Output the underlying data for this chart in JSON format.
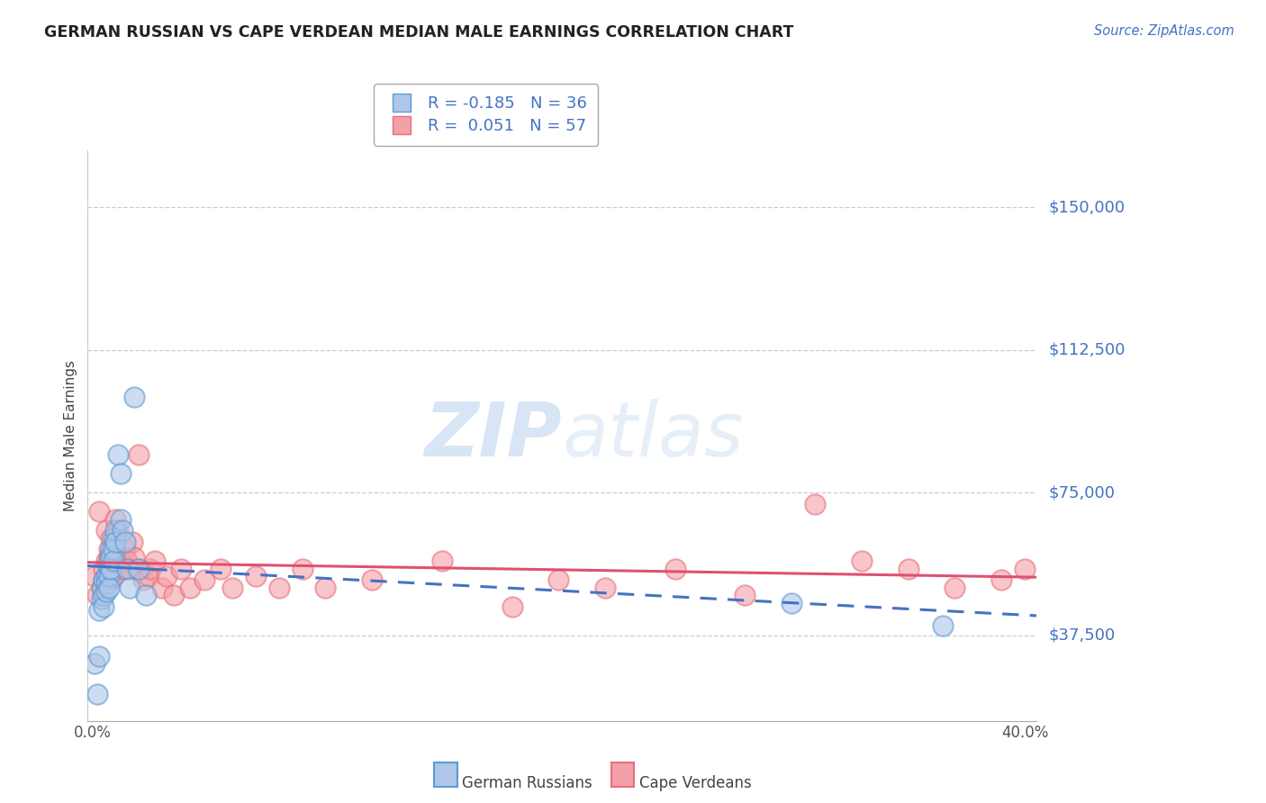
{
  "title": "GERMAN RUSSIAN VS CAPE VERDEAN MEDIAN MALE EARNINGS CORRELATION CHART",
  "source": "Source: ZipAtlas.com",
  "ylabel": "Median Male Earnings",
  "ytick_labels": [
    "$37,500",
    "$75,000",
    "$112,500",
    "$150,000"
  ],
  "ytick_values": [
    37500,
    75000,
    112500,
    150000
  ],
  "ymin": 15000,
  "ymax": 165000,
  "xmin": -0.002,
  "xmax": 0.405,
  "watermark_zip": "ZIP",
  "watermark_atlas": "atlas",
  "legend_blue_r": "-0.185",
  "legend_blue_n": "36",
  "legend_pink_r": "0.051",
  "legend_pink_n": "57",
  "legend_label_blue": "German Russians",
  "legend_label_pink": "Cape Verdeans",
  "blue_fill": "#AEC6E8",
  "pink_fill": "#F4A0A8",
  "blue_edge": "#5B9BD5",
  "pink_edge": "#E8707A",
  "blue_line": "#4472C4",
  "pink_line": "#E05070",
  "german_russian_x": [
    0.001,
    0.002,
    0.003,
    0.003,
    0.004,
    0.004,
    0.005,
    0.005,
    0.005,
    0.006,
    0.006,
    0.006,
    0.007,
    0.007,
    0.007,
    0.007,
    0.008,
    0.008,
    0.008,
    0.009,
    0.009,
    0.009,
    0.01,
    0.01,
    0.011,
    0.012,
    0.012,
    0.013,
    0.014,
    0.015,
    0.016,
    0.018,
    0.02,
    0.023,
    0.3,
    0.365
  ],
  "german_russian_y": [
    30000,
    22000,
    44000,
    32000,
    50000,
    47000,
    52000,
    48000,
    45000,
    53000,
    51000,
    49000,
    57000,
    55000,
    53000,
    50000,
    60000,
    58000,
    55000,
    63000,
    60000,
    57000,
    65000,
    62000,
    85000,
    80000,
    68000,
    65000,
    62000,
    55000,
    50000,
    100000,
    55000,
    48000,
    46000,
    40000
  ],
  "cape_verdean_x": [
    0.001,
    0.002,
    0.003,
    0.004,
    0.005,
    0.005,
    0.006,
    0.006,
    0.007,
    0.007,
    0.007,
    0.008,
    0.008,
    0.009,
    0.009,
    0.01,
    0.01,
    0.011,
    0.011,
    0.012,
    0.013,
    0.014,
    0.015,
    0.016,
    0.017,
    0.018,
    0.019,
    0.02,
    0.022,
    0.024,
    0.025,
    0.027,
    0.03,
    0.032,
    0.035,
    0.038,
    0.042,
    0.048,
    0.055,
    0.06,
    0.07,
    0.08,
    0.09,
    0.1,
    0.12,
    0.15,
    0.18,
    0.2,
    0.22,
    0.25,
    0.28,
    0.31,
    0.33,
    0.35,
    0.37,
    0.39,
    0.4
  ],
  "cape_verdean_y": [
    53000,
    48000,
    70000,
    50000,
    55000,
    52000,
    57000,
    65000,
    60000,
    58000,
    55000,
    63000,
    52000,
    55000,
    53000,
    62000,
    68000,
    65000,
    58000,
    58000,
    55000,
    60000,
    57000,
    55000,
    62000,
    58000,
    55000,
    85000,
    52000,
    53000,
    55000,
    57000,
    50000,
    53000,
    48000,
    55000,
    50000,
    52000,
    55000,
    50000,
    53000,
    50000,
    55000,
    50000,
    52000,
    57000,
    45000,
    52000,
    50000,
    55000,
    48000,
    72000,
    57000,
    55000,
    50000,
    52000,
    55000
  ]
}
